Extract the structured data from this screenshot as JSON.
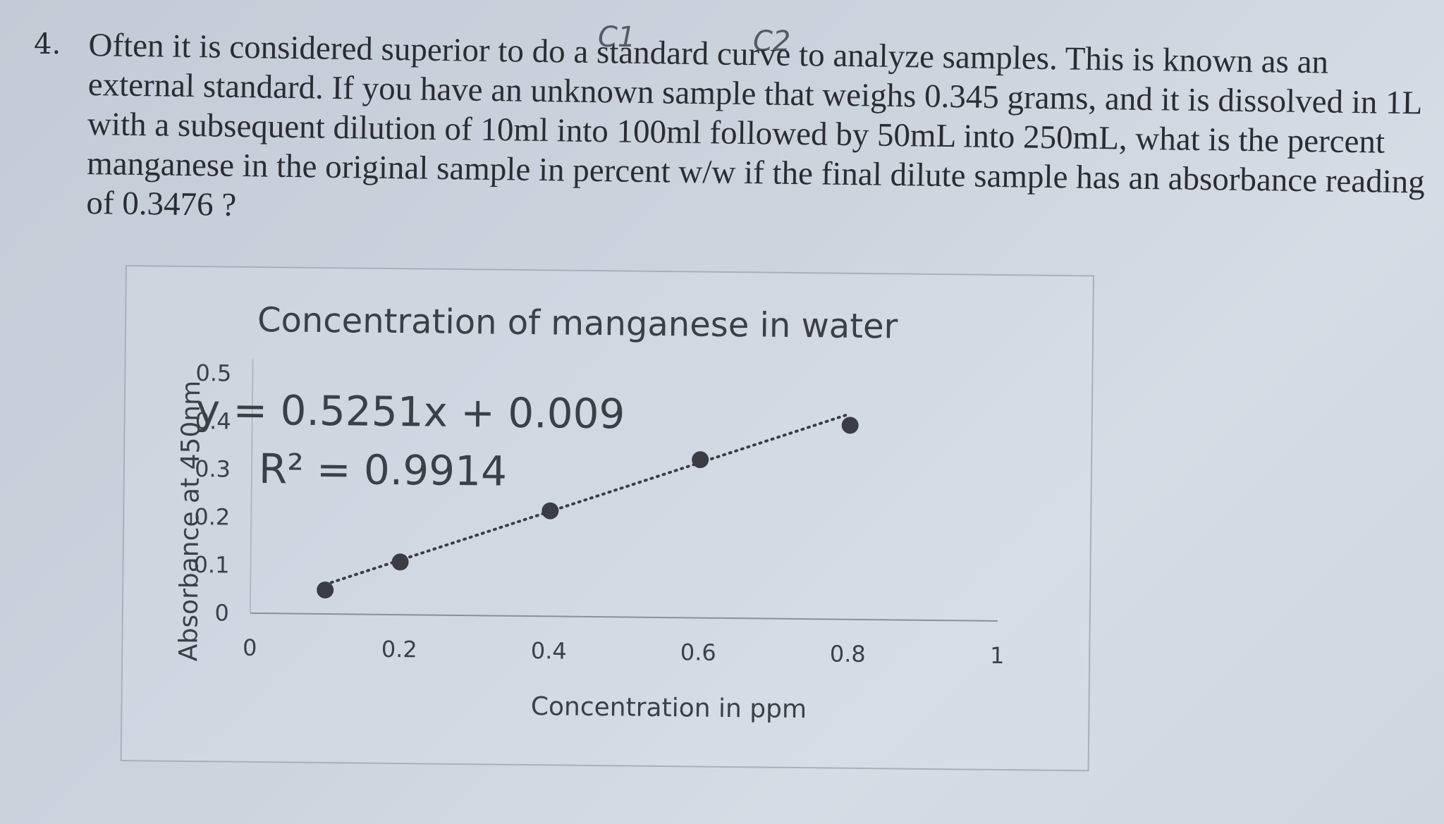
{
  "question": {
    "number": "4.",
    "text": "Often it is considered superior to do a standard curve to analyze samples. This is known as an external standard. If you have an unknown sample that weighs 0.345 grams, and it is dissolved in 1L with a subsequent dilution of 10ml into 100ml followed by 50mL into 250mL, what is the percent manganese in the original sample in percent w/w if the final dilute sample has an absorbance reading of 0.3476 ?"
  },
  "annotations": {
    "c1": "C1",
    "c2": "C2"
  },
  "chart_data": {
    "type": "scatter",
    "title": "Concentration of manganese in water",
    "xlabel": "Concentration in ppm",
    "ylabel": "Absorbance at 450nm",
    "xlim": [
      0,
      1
    ],
    "ylim": [
      0,
      0.5
    ],
    "x_ticks": [
      "0",
      "0.2",
      "0.4",
      "0.6",
      "0.8",
      "1"
    ],
    "y_ticks": [
      "0",
      "0.1",
      "0.2",
      "0.3",
      "0.4",
      "0.5"
    ],
    "points": [
      {
        "x": 0.1,
        "y": 0.05
      },
      {
        "x": 0.2,
        "y": 0.11
      },
      {
        "x": 0.4,
        "y": 0.22
      },
      {
        "x": 0.6,
        "y": 0.33
      },
      {
        "x": 0.8,
        "y": 0.405
      }
    ],
    "trendline": {
      "style": "dotted",
      "slope": 0.5251,
      "intercept": 0.009,
      "x_range": [
        0.1,
        0.8
      ],
      "equation": "y = 0.5251x + 0.009",
      "r_squared": "R² = 0.9914"
    },
    "grid": false,
    "legend": "none",
    "marker_color": "#3a3d44",
    "text_color": "#3b3f47"
  }
}
